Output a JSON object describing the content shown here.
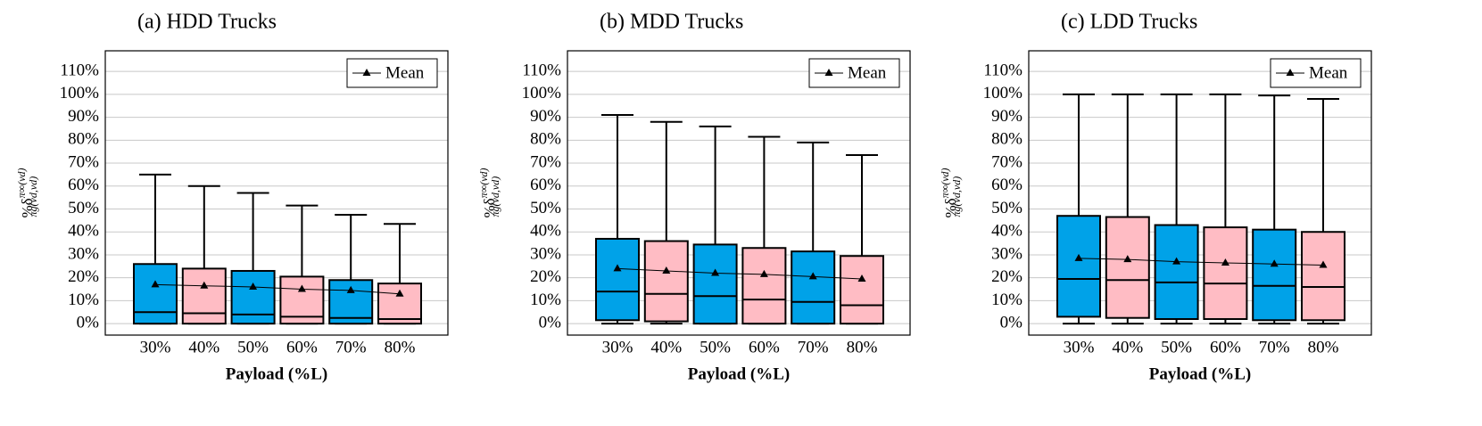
{
  "chart_data": [
    {
      "type": "box",
      "title": "(a) HDD Trucks",
      "x_label": "Payload (%L)",
      "y_label": {
        "base": "%δ",
        "sup": "π∞(vd)",
        "sub": "πg(vd,vd)"
      },
      "categories": [
        "30%",
        "40%",
        "50%",
        "60%",
        "70%",
        "80%"
      ],
      "box_colors": [
        "#00a2e8",
        "#ffbcc4",
        "#00a2e8",
        "#ffbcc4",
        "#00a2e8",
        "#ffbcc4"
      ],
      "boxes": {
        "min": [
          0,
          0,
          0,
          0,
          0,
          0
        ],
        "q1": [
          0,
          0,
          0,
          0,
          0,
          0
        ],
        "median": [
          5,
          4.5,
          4,
          3,
          2.5,
          2
        ],
        "q3": [
          26,
          24,
          23,
          20.5,
          19,
          17.5
        ],
        "max": [
          65,
          60,
          57,
          51.5,
          47.5,
          43.5
        ]
      },
      "series": [
        {
          "name": "Mean",
          "color": "#000000",
          "values": [
            17,
            16.5,
            16,
            15,
            14.5,
            13
          ]
        }
      ],
      "ylim": [
        -5,
        119
      ],
      "yticks": [
        {
          "value": 0,
          "label": "0%"
        },
        {
          "value": 10,
          "label": "10%"
        },
        {
          "value": 20,
          "label": "20%"
        },
        {
          "value": 30,
          "label": "30%"
        },
        {
          "value": 40,
          "label": "40%"
        },
        {
          "value": 50,
          "label": "50%"
        },
        {
          "value": 60,
          "label": "60%"
        },
        {
          "value": 70,
          "label": "70%"
        },
        {
          "value": 80,
          "label": "80%"
        },
        {
          "value": 90,
          "label": "90%"
        },
        {
          "value": 100,
          "label": "100%"
        },
        {
          "value": 110,
          "label": "110%"
        }
      ],
      "grid": true,
      "legend": "upper right"
    },
    {
      "type": "box",
      "title": "(b) MDD Trucks",
      "x_label": "Payload (%L)",
      "y_label": {
        "base": "%δ",
        "sup": "π∞(vd)",
        "sub": "πg(vd,vd)"
      },
      "categories": [
        "30%",
        "40%",
        "50%",
        "60%",
        "70%",
        "80%"
      ],
      "box_colors": [
        "#00a2e8",
        "#ffbcc4",
        "#00a2e8",
        "#ffbcc4",
        "#00a2e8",
        "#ffbcc4"
      ],
      "boxes": {
        "min": [
          0,
          0,
          0,
          0,
          0,
          0
        ],
        "q1": [
          1.5,
          1,
          0,
          0,
          0,
          0
        ],
        "median": [
          14,
          13,
          12,
          10.5,
          9.5,
          8
        ],
        "q3": [
          37,
          36,
          34.5,
          33,
          31.5,
          29.5
        ],
        "max": [
          91,
          88,
          86,
          81.5,
          79,
          73.5
        ]
      },
      "series": [
        {
          "name": "Mean",
          "color": "#000000",
          "values": [
            24,
            23,
            22,
            21.5,
            20.5,
            19.5
          ]
        }
      ],
      "ylim": [
        -5,
        119
      ],
      "yticks": [
        {
          "value": 0,
          "label": "0%"
        },
        {
          "value": 10,
          "label": "10%"
        },
        {
          "value": 20,
          "label": "20%"
        },
        {
          "value": 30,
          "label": "30%"
        },
        {
          "value": 40,
          "label": "40%"
        },
        {
          "value": 50,
          "label": "50%"
        },
        {
          "value": 60,
          "label": "60%"
        },
        {
          "value": 70,
          "label": "70%"
        },
        {
          "value": 80,
          "label": "80%"
        },
        {
          "value": 90,
          "label": "90%"
        },
        {
          "value": 100,
          "label": "100%"
        },
        {
          "value": 110,
          "label": "110%"
        }
      ],
      "grid": true,
      "legend": "upper right"
    },
    {
      "type": "box",
      "title": "(c) LDD Trucks",
      "x_label": "Payload (%L)",
      "y_label": {
        "base": "%δ",
        "sup": "π∞(vd)",
        "sub": "πg(vd,vd)"
      },
      "categories": [
        "30%",
        "40%",
        "50%",
        "60%",
        "70%",
        "80%"
      ],
      "box_colors": [
        "#00a2e8",
        "#ffbcc4",
        "#00a2e8",
        "#ffbcc4",
        "#00a2e8",
        "#ffbcc4"
      ],
      "boxes": {
        "min": [
          0,
          0,
          0,
          0,
          0,
          0
        ],
        "q1": [
          3,
          2.5,
          2,
          2,
          1.5,
          1.5
        ],
        "median": [
          19.5,
          19,
          18,
          17.5,
          16.5,
          16
        ],
        "q3": [
          47,
          46.5,
          43,
          42,
          41,
          40
        ],
        "max": [
          100,
          100,
          100,
          100,
          99.5,
          98
        ]
      },
      "series": [
        {
          "name": "Mean",
          "color": "#000000",
          "values": [
            28.5,
            28,
            27,
            26.5,
            26,
            25.5
          ]
        }
      ],
      "ylim": [
        -5,
        119
      ],
      "yticks": [
        {
          "value": 0,
          "label": "0%"
        },
        {
          "value": 10,
          "label": "10%"
        },
        {
          "value": 20,
          "label": "20%"
        },
        {
          "value": 30,
          "label": "30%"
        },
        {
          "value": 40,
          "label": "40%"
        },
        {
          "value": 50,
          "label": "50%"
        },
        {
          "value": 60,
          "label": "60%"
        },
        {
          "value": 70,
          "label": "70%"
        },
        {
          "value": 80,
          "label": "80%"
        },
        {
          "value": 90,
          "label": "90%"
        },
        {
          "value": 100,
          "label": "100%"
        },
        {
          "value": 110,
          "label": "110%"
        }
      ],
      "grid": true,
      "legend": "upper right"
    }
  ]
}
